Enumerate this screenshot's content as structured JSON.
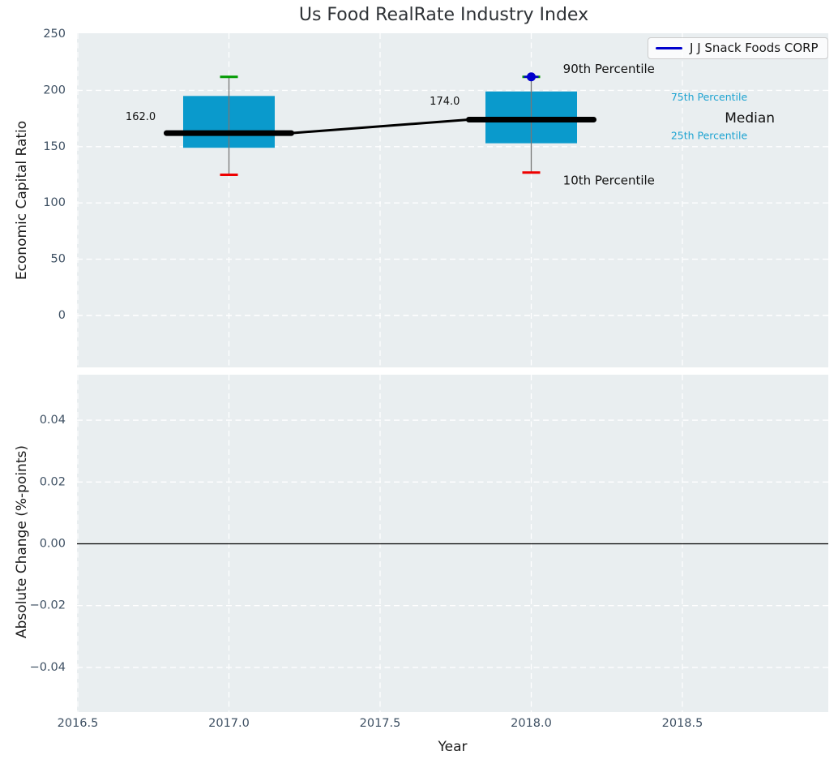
{
  "title": "Us Food RealRate Industry Index",
  "chart_data": {
    "type": "boxplot-line",
    "title": "Us Food RealRate Industry Index",
    "xlabel": "Year",
    "legend": {
      "label": "J J Snack Foods CORP",
      "color": "#0000cd",
      "position": "upper right"
    },
    "colors": {
      "axes_background": "#e9eef0",
      "gridline": "#ffffff",
      "box_fill": "#0a9acc",
      "whisker": "#777777",
      "cap_top": "#009a00",
      "cap_bottom": "#ee0000",
      "median_line": "#000000",
      "company_marker": "#0000cd",
      "percentile_text": "#1da3d1",
      "annotation_text": "#111111",
      "tick_text": "#3e5063",
      "zero_line": "#000000"
    },
    "top_plot": {
      "ylabel": "Economic Capital Ratio",
      "ylim": [
        -47,
        251
      ],
      "xlim": [
        2016.497,
        2018.985
      ],
      "yticks": [
        250,
        200,
        150,
        100,
        50,
        0
      ],
      "ytick_labels": [
        "250",
        "200",
        "150",
        "100",
        "50",
        "0"
      ],
      "xticks": [
        2016.5,
        2017.0,
        2017.5,
        2018.0,
        2018.5
      ],
      "grid_yticks": [
        200,
        150,
        100,
        50,
        0
      ],
      "boxes": [
        {
          "year": 2017,
          "p10": 125,
          "p25": 149,
          "median": 162,
          "p75": 195,
          "p90": 212
        },
        {
          "year": 2018,
          "p10": 127,
          "p25": 153,
          "median": 174,
          "p75": 199,
          "p90": 212
        }
      ],
      "company_series": {
        "name": "J J Snack Foods CORP",
        "x": [
          2018
        ],
        "values": [
          212
        ]
      },
      "median_trend": {
        "x": [
          2017,
          2018
        ],
        "values": [
          162,
          174
        ]
      },
      "annotations": [
        {
          "id": "value-label-2017",
          "text": "162.0",
          "x": 2016.658,
          "y": 176,
          "size": 13,
          "color_key": "annotation_text"
        },
        {
          "id": "value-label-2018",
          "text": "174.0",
          "x": 2017.664,
          "y": 190,
          "size": 13,
          "color_key": "annotation_text"
        },
        {
          "id": "annotation-90th-percentile",
          "text": "90th Percentile",
          "x": 2018.105,
          "y": 219,
          "size": 15,
          "color_key": "annotation_text"
        },
        {
          "id": "annotation-75th-percentile",
          "text": "75th Percentile",
          "x": 2018.462,
          "y": 194,
          "size": 12.5,
          "color_key": "percentile_text"
        },
        {
          "id": "annotation-median",
          "text": "Median",
          "x": 2018.64,
          "y": 175,
          "size": 17,
          "color_key": "annotation_text"
        },
        {
          "id": "annotation-25th-percentile",
          "text": "25th Percentile",
          "x": 2018.462,
          "y": 160,
          "size": 12.5,
          "color_key": "percentile_text"
        },
        {
          "id": "annotation-10th-percentile",
          "text": "10th Percentile",
          "x": 2018.105,
          "y": 120,
          "size": 15,
          "color_key": "annotation_text"
        }
      ]
    },
    "bottom_plot": {
      "ylabel": "Absolute Change (%-points)",
      "ylim": [
        -0.0546,
        0.0547
      ],
      "yticks": [
        0.04,
        0.02,
        0.0,
        -0.02,
        -0.04
      ],
      "ytick_labels": [
        "0.04",
        "0.02",
        "0.00",
        "−0.02",
        "−0.04"
      ],
      "grid_yticks": [
        0.04,
        0.02,
        -0.02,
        -0.04
      ],
      "xticks": [
        2016.5,
        2017.0,
        2017.5,
        2018.0,
        2018.5
      ],
      "xtick_labels": [
        "2016.5",
        "2017.0",
        "2017.5",
        "2018.0",
        "2018.5"
      ],
      "zero_line": 0.0,
      "series": []
    }
  }
}
